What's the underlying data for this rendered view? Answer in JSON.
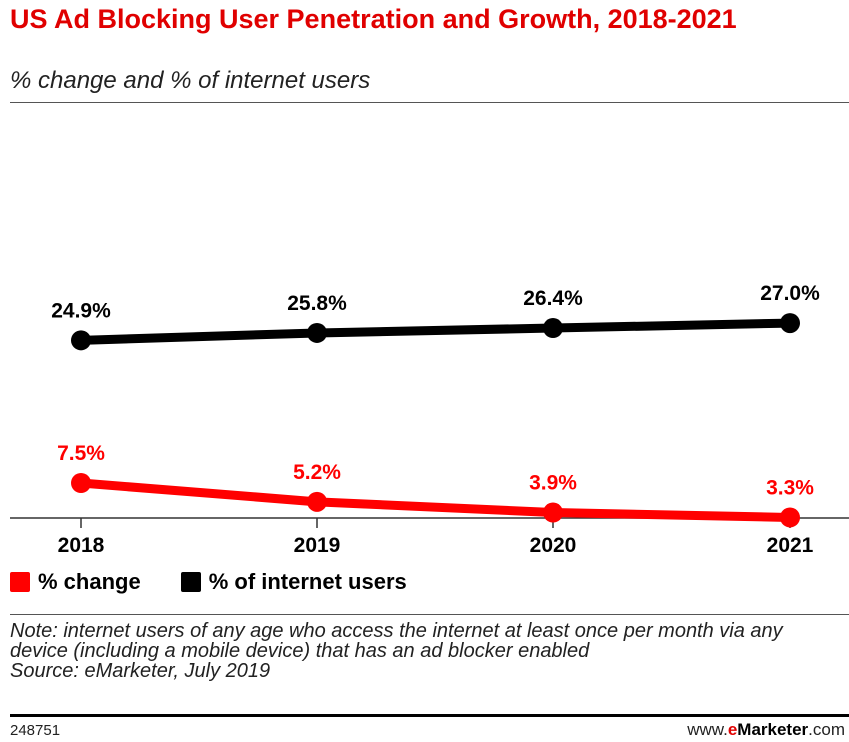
{
  "header": {
    "title": "US Ad Blocking User Penetration and Growth, 2018-2021",
    "subtitle": "% change and % of internet users"
  },
  "chart_data": {
    "type": "line",
    "title": "US Ad Blocking User Penetration and Growth, 2018-2021",
    "subtitle": "% change and % of internet users",
    "categories": [
      "2018",
      "2019",
      "2020",
      "2021"
    ],
    "series": [
      {
        "name": "% change",
        "color": "#ff0000",
        "values": [
          7.5,
          5.2,
          3.9,
          3.3
        ],
        "labels": [
          "7.5%",
          "5.2%",
          "3.9%",
          "3.3%"
        ]
      },
      {
        "name": "% of internet users",
        "color": "#000000",
        "values": [
          24.9,
          25.8,
          26.4,
          27.0
        ],
        "labels": [
          "24.9%",
          "25.8%",
          "26.4%",
          "27.0%"
        ]
      }
    ],
    "xlabel": "",
    "ylabel": "",
    "grid": false,
    "legend_position": "bottom-left"
  },
  "legend": {
    "items": [
      {
        "label": "% change",
        "color": "#ff0000"
      },
      {
        "label": "% of internet users",
        "color": "#000000"
      }
    ]
  },
  "note": {
    "text": "Note: internet users of any age who access the internet at least once per month via any device (including a mobile device) that has an ad blocker enabled",
    "source": "Source: eMarketer, July 2019"
  },
  "footer": {
    "id": "248751",
    "brand_prefix": "www.",
    "brand_e": "e",
    "brand_name": "Marketer",
    "brand_suffix": ".com"
  }
}
